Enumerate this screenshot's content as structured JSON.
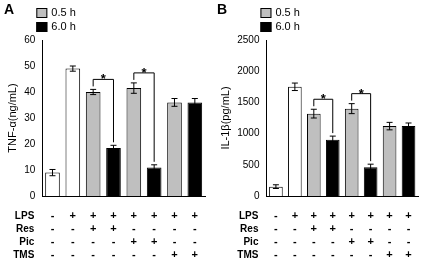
{
  "chart_data": [
    {
      "type": "bar",
      "title": "A",
      "y_label": "TNF-α(ng/mL)",
      "categories": [
        null,
        null,
        null,
        null,
        null,
        null,
        null,
        null
      ],
      "ylim": [
        0,
        60
      ],
      "yticks": [
        0,
        10,
        20,
        30,
        40,
        50,
        60
      ],
      "grid": false,
      "legend": "top-left",
      "series": [
        {
          "color": "#ffffff",
          "values": [
            9,
            49,
            null,
            null,
            null,
            null,
            null,
            null
          ],
          "errors": [
            1.2,
            1.0,
            null,
            null,
            null,
            null,
            null,
            null
          ]
        },
        {
          "name": "0.5 h",
          "color": "#bfbfbf",
          "values": [
            null,
            null,
            40,
            null,
            41.5,
            null,
            36,
            null
          ],
          "errors": [
            null,
            null,
            1.0,
            null,
            2.0,
            null,
            1.5,
            null
          ]
        },
        {
          "name": "6.0 h",
          "color": "#000000",
          "values": [
            null,
            null,
            null,
            18.5,
            null,
            11,
            null,
            36
          ],
          "errors": [
            null,
            null,
            null,
            1.0,
            null,
            1.0,
            null,
            1.5
          ]
        }
      ],
      "annotations": [
        {
          "text": "*",
          "from": 2,
          "to": 3
        },
        {
          "text": "*",
          "from": 4,
          "to": 5
        }
      ],
      "treatment_table": [
        {
          "label": "LPS",
          "marks": [
            "-",
            "+",
            "+",
            "+",
            "+",
            "+",
            "+",
            "+"
          ]
        },
        {
          "label": "Res",
          "marks": [
            "-",
            "-",
            "+",
            "+",
            "-",
            "-",
            "-",
            "-"
          ]
        },
        {
          "label": "Pic",
          "marks": [
            "-",
            "-",
            "-",
            "-",
            "+",
            "+",
            "-",
            "-"
          ]
        },
        {
          "label": "TMS",
          "marks": [
            "-",
            "-",
            "-",
            "-",
            "-",
            "-",
            "+",
            "+"
          ]
        }
      ]
    },
    {
      "type": "bar",
      "title": "B",
      "y_label": "IL-1β(pg/mL)",
      "categories": [
        null,
        null,
        null,
        null,
        null,
        null,
        null,
        null
      ],
      "ylim": [
        0,
        2500
      ],
      "yticks": [
        0,
        500,
        1000,
        1500,
        2000,
        2500
      ],
      "grid": false,
      "legend": "top-left",
      "series": [
        {
          "color": "#ffffff",
          "values": [
            150,
            1750,
            null,
            null,
            null,
            null,
            null,
            null
          ],
          "errors": [
            30,
            60,
            null,
            null,
            null,
            null,
            null,
            null
          ]
        },
        {
          "name": "0.5 h",
          "color": "#bfbfbf",
          "values": [
            null,
            null,
            1320,
            null,
            1400,
            null,
            1120,
            null
          ],
          "errors": [
            null,
            null,
            70,
            null,
            80,
            null,
            60,
            null
          ]
        },
        {
          "name": "6.0 h",
          "color": "#000000",
          "values": [
            null,
            null,
            null,
            900,
            null,
            460,
            null,
            1120
          ],
          "errors": [
            null,
            null,
            null,
            60,
            null,
            50,
            null,
            50
          ]
        }
      ],
      "annotations": [
        {
          "text": "*",
          "from": 2,
          "to": 3
        },
        {
          "text": "*",
          "from": 4,
          "to": 5
        }
      ],
      "treatment_table": [
        {
          "label": "LPS",
          "marks": [
            "-",
            "+",
            "+",
            "+",
            "+",
            "+",
            "+",
            "+"
          ]
        },
        {
          "label": "Res",
          "marks": [
            "-",
            "-",
            "+",
            "+",
            "-",
            "-",
            "-",
            "-"
          ]
        },
        {
          "label": "Pic",
          "marks": [
            "-",
            "-",
            "-",
            "-",
            "+",
            "+",
            "-",
            "-"
          ]
        },
        {
          "label": "TMS",
          "marks": [
            "-",
            "-",
            "-",
            "-",
            "-",
            "-",
            "+",
            "+"
          ]
        }
      ]
    }
  ]
}
